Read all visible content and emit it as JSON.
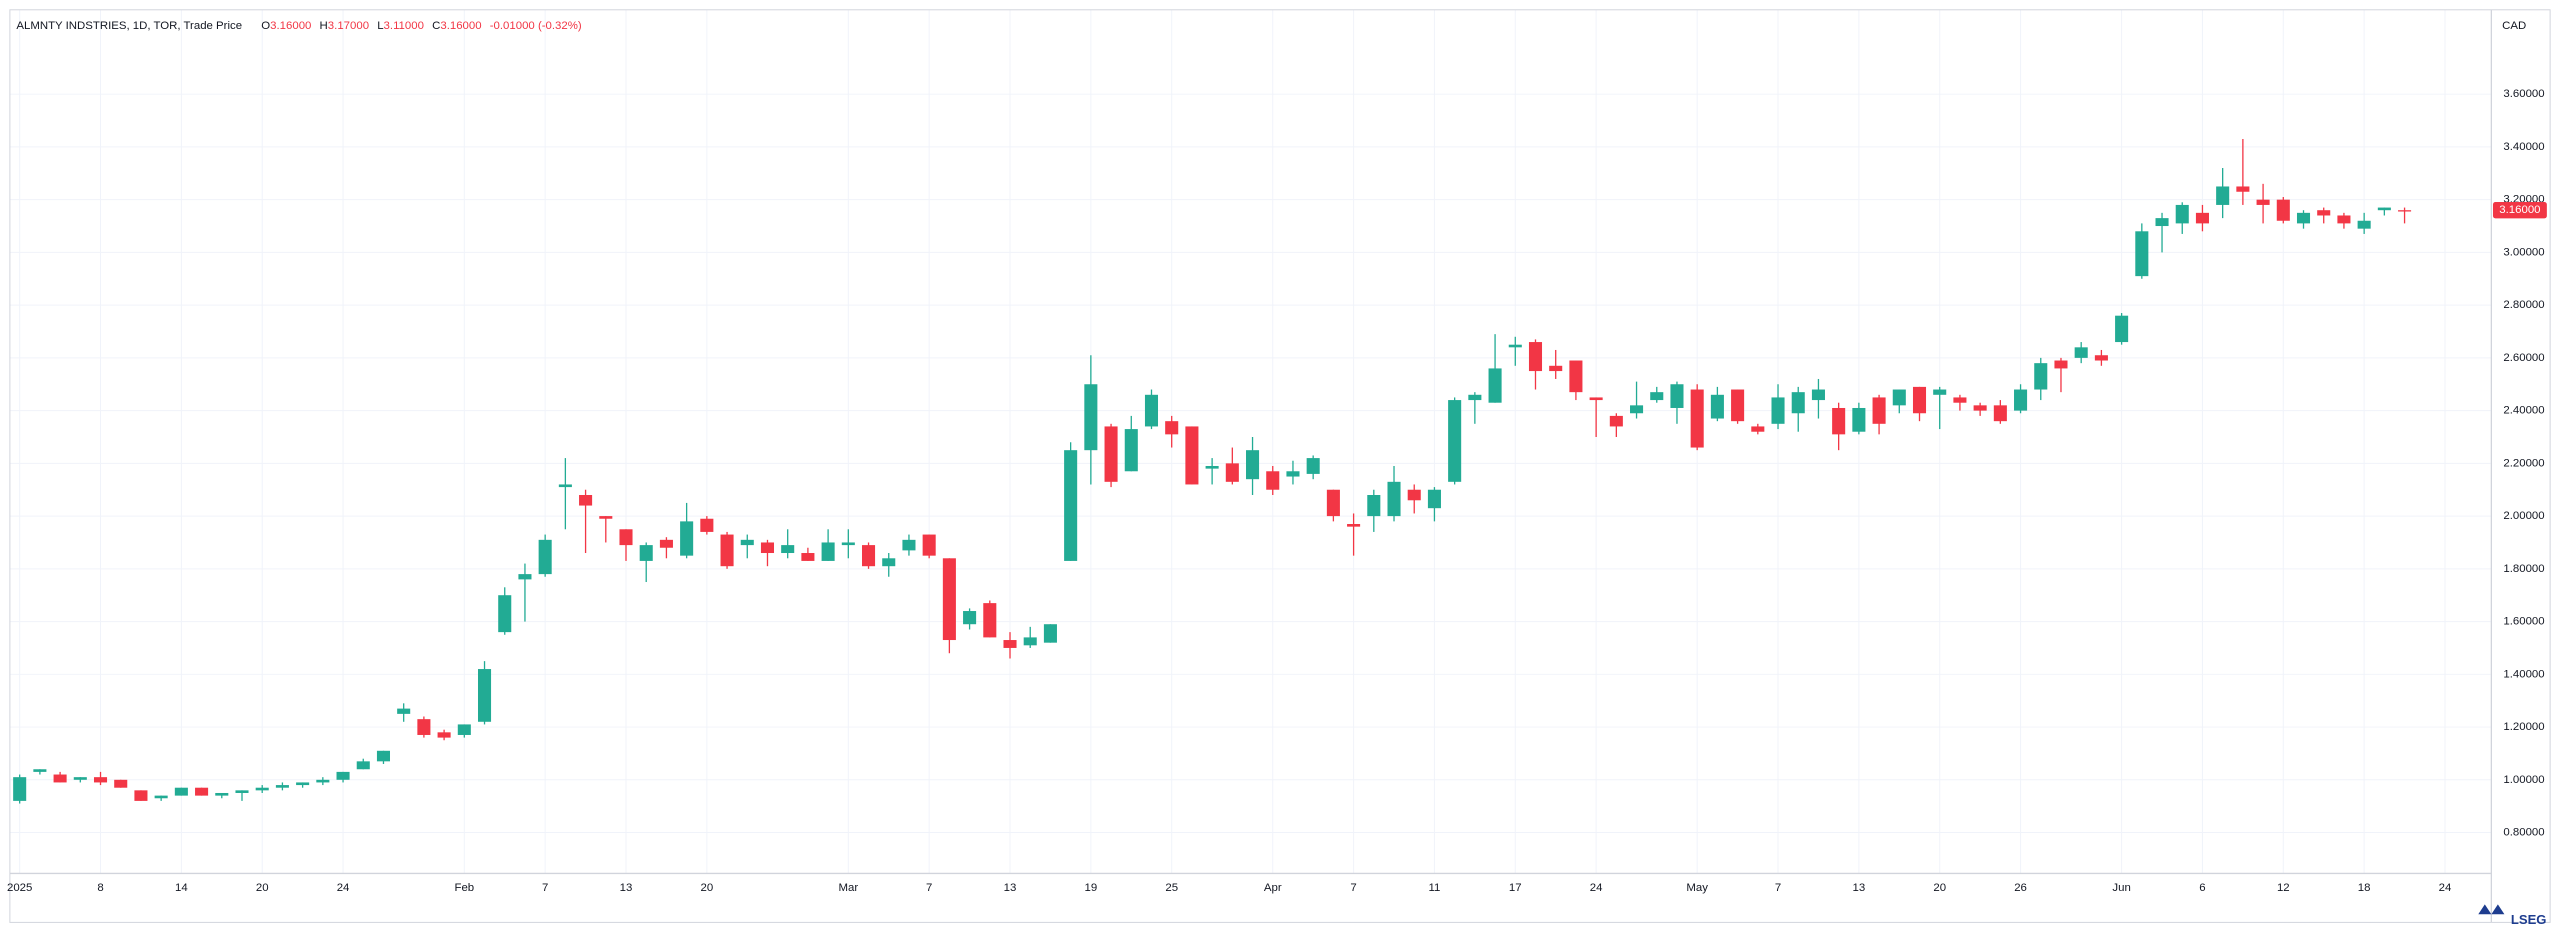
{
  "chart_data": {
    "type": "candlestick",
    "title": "ALMNTY INDSTRIES, 1D, TOR, Trade Price",
    "header": [
      {
        "key": "O",
        "value": "3.16000"
      },
      {
        "key": "H",
        "value": "3.17000"
      },
      {
        "key": "L",
        "value": "3.11000"
      },
      {
        "key": "C",
        "value": "3.16000"
      }
    ],
    "change": "-0.01000 (-0.32%)",
    "currency": "CAD",
    "branding": "LSEG",
    "last_price": {
      "value": 3.16,
      "label": "3.16000"
    },
    "up_color": "#22ab94",
    "down_color": "#f23645",
    "grid": true,
    "categories": [
      "2025",
      null,
      null,
      null,
      "8",
      null,
      null,
      null,
      "14",
      null,
      null,
      null,
      "20",
      null,
      null,
      null,
      "24",
      null,
      null,
      null,
      null,
      null,
      "Feb",
      null,
      null,
      null,
      "7",
      null,
      null,
      null,
      "13",
      null,
      null,
      null,
      "20",
      null,
      null,
      null,
      null,
      null,
      null,
      "Mar",
      null,
      null,
      null,
      "7",
      null,
      null,
      null,
      "13",
      null,
      null,
      null,
      "19",
      null,
      null,
      null,
      "25",
      null,
      null,
      null,
      null,
      "Apr",
      null,
      null,
      null,
      "7",
      null,
      null,
      null,
      "11",
      null,
      null,
      null,
      "17",
      null,
      null,
      null,
      "24",
      null,
      null,
      null,
      null,
      "May",
      null,
      null,
      null,
      "7",
      null,
      null,
      null,
      "13",
      null,
      null,
      null,
      "20",
      null,
      null,
      null,
      "26",
      null,
      null,
      null,
      null,
      "Jun",
      null,
      null,
      null,
      "6",
      null,
      null,
      null,
      "12",
      null,
      null,
      null,
      "18",
      null,
      null,
      null,
      "24"
    ],
    "open": [
      0.92,
      1.03,
      1.02,
      1.0,
      1.01,
      1.0,
      0.96,
      0.93,
      0.94,
      0.97,
      0.94,
      0.95,
      0.96,
      0.97,
      0.98,
      0.99,
      1.0,
      1.04,
      1.07,
      1.25,
      1.23,
      1.18,
      1.17,
      1.22,
      1.56,
      1.76,
      1.78,
      2.11,
      2.08,
      2.0,
      1.95,
      1.83,
      1.91,
      1.85,
      1.99,
      1.93,
      1.89,
      1.9,
      1.86,
      1.86,
      1.83,
      1.89,
      1.89,
      1.81,
      1.87,
      1.93,
      1.84,
      1.59,
      1.67,
      1.53,
      1.51,
      1.52,
      1.83,
      2.25,
      2.34,
      2.17,
      2.34,
      2.36,
      2.34,
      2.18,
      2.2,
      2.14,
      2.17,
      2.15,
      2.16,
      2.1,
      1.97,
      2.0,
      2.0,
      2.1,
      2.03,
      2.13,
      2.44,
      2.43,
      2.64,
      2.66,
      2.57,
      2.59,
      2.45,
      2.38,
      2.39,
      2.44,
      2.41,
      2.48,
      2.37,
      2.48,
      2.34,
      2.35,
      2.39,
      2.44,
      2.41,
      2.32,
      2.45,
      2.42,
      2.49,
      2.46,
      2.45,
      2.42,
      2.42,
      2.4,
      2.48,
      2.59,
      2.6,
      2.61,
      2.66,
      2.91,
      3.1,
      3.11,
      3.15,
      3.18,
      3.25,
      3.2,
      3.2,
      3.11,
      3.16,
      3.14,
      3.09,
      3.16,
      3.16,
      null,
      null
    ],
    "high": [
      1.02,
      1.04,
      1.03,
      1.01,
      1.03,
      1.0,
      0.96,
      0.94,
      0.97,
      0.97,
      0.95,
      0.96,
      0.98,
      0.99,
      0.99,
      1.01,
      1.03,
      1.08,
      1.11,
      1.29,
      1.24,
      1.19,
      1.21,
      1.45,
      1.73,
      1.82,
      1.93,
      2.22,
      2.1,
      2.0,
      1.95,
      1.9,
      1.92,
      2.05,
      2.0,
      1.94,
      1.93,
      1.91,
      1.95,
      1.88,
      1.95,
      1.95,
      1.9,
      1.86,
      1.93,
      1.93,
      1.84,
      1.65,
      1.68,
      1.56,
      1.58,
      1.59,
      2.28,
      2.61,
      2.35,
      2.38,
      2.48,
      2.38,
      2.34,
      2.22,
      2.26,
      2.3,
      2.19,
      2.21,
      2.23,
      2.1,
      2.01,
      2.1,
      2.19,
      2.12,
      2.11,
      2.45,
      2.47,
      2.69,
      2.68,
      2.67,
      2.63,
      2.59,
      2.45,
      2.39,
      2.51,
      2.49,
      2.51,
      2.5,
      2.49,
      2.48,
      2.35,
      2.5,
      2.49,
      2.52,
      2.43,
      2.43,
      2.46,
      2.48,
      2.49,
      2.49,
      2.46,
      2.43,
      2.44,
      2.5,
      2.6,
      2.6,
      2.66,
      2.63,
      2.77,
      3.11,
      3.15,
      3.19,
      3.18,
      3.32,
      3.43,
      3.26,
      3.21,
      3.16,
      3.17,
      3.15,
      3.15,
      3.17,
      3.17,
      null,
      null
    ],
    "low": [
      0.91,
      1.02,
      0.99,
      0.99,
      0.98,
      0.97,
      0.92,
      0.92,
      0.94,
      0.94,
      0.93,
      0.92,
      0.95,
      0.96,
      0.97,
      0.98,
      0.99,
      1.04,
      1.06,
      1.22,
      1.16,
      1.15,
      1.16,
      1.21,
      1.55,
      1.6,
      1.77,
      1.95,
      1.86,
      1.9,
      1.83,
      1.75,
      1.84,
      1.84,
      1.93,
      1.8,
      1.84,
      1.81,
      1.84,
      1.83,
      1.83,
      1.84,
      1.8,
      1.77,
      1.85,
      1.84,
      1.48,
      1.57,
      1.54,
      1.46,
      1.5,
      1.52,
      1.83,
      2.12,
      2.11,
      2.17,
      2.33,
      2.26,
      2.12,
      2.12,
      2.12,
      2.08,
      2.08,
      2.12,
      2.14,
      1.98,
      1.85,
      1.94,
      1.98,
      2.01,
      1.98,
      2.12,
      2.35,
      2.43,
      2.57,
      2.48,
      2.52,
      2.44,
      2.3,
      2.3,
      2.37,
      2.43,
      2.35,
      2.25,
      2.36,
      2.35,
      2.31,
      2.33,
      2.32,
      2.37,
      2.25,
      2.31,
      2.31,
      2.39,
      2.36,
      2.33,
      2.4,
      2.38,
      2.35,
      2.39,
      2.44,
      2.47,
      2.58,
      2.57,
      2.65,
      2.9,
      3.0,
      3.07,
      3.08,
      3.13,
      3.18,
      3.11,
      3.11,
      3.09,
      3.11,
      3.09,
      3.07,
      3.14,
      3.11,
      null,
      null
    ],
    "close": [
      1.01,
      1.04,
      0.99,
      1.01,
      0.99,
      0.97,
      0.92,
      0.94,
      0.97,
      0.94,
      0.95,
      0.96,
      0.97,
      0.98,
      0.99,
      1.0,
      1.03,
      1.07,
      1.11,
      1.27,
      1.17,
      1.16,
      1.21,
      1.42,
      1.7,
      1.78,
      1.91,
      2.12,
      2.04,
      1.99,
      1.89,
      1.89,
      1.88,
      1.98,
      1.94,
      1.81,
      1.91,
      1.86,
      1.89,
      1.83,
      1.9,
      1.9,
      1.81,
      1.84,
      1.91,
      1.85,
      1.53,
      1.64,
      1.54,
      1.5,
      1.54,
      1.59,
      2.25,
      2.5,
      2.13,
      2.33,
      2.46,
      2.31,
      2.12,
      2.19,
      2.13,
      2.25,
      2.1,
      2.17,
      2.22,
      2.0,
      1.96,
      2.08,
      2.13,
      2.06,
      2.1,
      2.44,
      2.46,
      2.56,
      2.65,
      2.55,
      2.55,
      2.47,
      2.44,
      2.34,
      2.42,
      2.47,
      2.5,
      2.26,
      2.46,
      2.36,
      2.32,
      2.45,
      2.47,
      2.48,
      2.31,
      2.41,
      2.35,
      2.48,
      2.39,
      2.48,
      2.43,
      2.4,
      2.36,
      2.48,
      2.58,
      2.56,
      2.64,
      2.59,
      2.76,
      3.08,
      3.13,
      3.18,
      3.11,
      3.25,
      3.23,
      3.18,
      3.12,
      3.15,
      3.14,
      3.11,
      3.12,
      3.17,
      3.16,
      null,
      null
    ],
    "ylim": [
      0.645,
      3.92
    ],
    "yticks": [
      {
        "value": 0.8,
        "label": "0.80000"
      },
      {
        "value": 1.0,
        "label": "1.00000"
      },
      {
        "value": 1.2,
        "label": "1.20000"
      },
      {
        "value": 1.4,
        "label": "1.40000"
      },
      {
        "value": 1.6,
        "label": "1.60000"
      },
      {
        "value": 1.8,
        "label": "1.80000"
      },
      {
        "value": 2.0,
        "label": "2.00000"
      },
      {
        "value": 2.2,
        "label": "2.20000"
      },
      {
        "value": 2.4,
        "label": "2.40000"
      },
      {
        "value": 2.6,
        "label": "2.60000"
      },
      {
        "value": 2.8,
        "label": "2.80000"
      },
      {
        "value": 3.0,
        "label": "3.00000"
      },
      {
        "value": 3.2,
        "label": "3.20000"
      },
      {
        "value": 3.4,
        "label": "3.40000"
      },
      {
        "value": 3.6,
        "label": "3.60000"
      }
    ]
  }
}
